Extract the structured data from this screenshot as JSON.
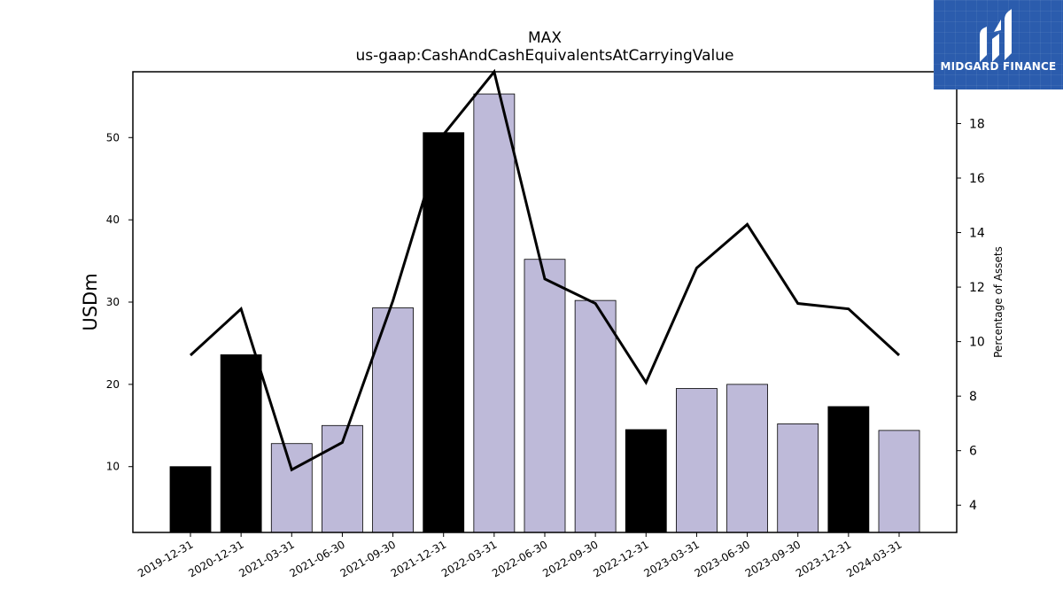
{
  "chart_data": {
    "type": "bar",
    "title": "MAX",
    "subtitle": "us-gaap:CashAndCashEquivalentsAtCarryingValue",
    "ylabel": "USDm",
    "y2label": "Percentage of Assets",
    "categories": [
      "2019-12-31",
      "2020-12-31",
      "2021-03-31",
      "2021-06-30",
      "2021-09-30",
      "2021-12-31",
      "2022-03-31",
      "2022-06-30",
      "2022-09-30",
      "2022-12-31",
      "2023-03-31",
      "2023-06-30",
      "2023-09-30",
      "2023-12-31",
      "2024-03-31"
    ],
    "series": [
      {
        "values": [
          10.0,
          23.6,
          12.8,
          15.0,
          29.3,
          50.6,
          55.3,
          35.2,
          30.2,
          14.5,
          19.5,
          20.0,
          15.2,
          17.3,
          14.4
        ],
        "annual": [
          true,
          true,
          false,
          false,
          false,
          true,
          false,
          false,
          false,
          true,
          false,
          false,
          false,
          true,
          false
        ],
        "axis": "left"
      },
      {
        "values": [
          9.5,
          11.2,
          5.3,
          6.3,
          11.5,
          17.6,
          19.9,
          12.3,
          11.4,
          8.5,
          12.7,
          14.3,
          11.4,
          11.2,
          9.5
        ],
        "axis": "right"
      }
    ],
    "ylim": [
      2,
      58
    ],
    "y2lim": [
      3.0,
      19.9
    ],
    "yticks": [
      10,
      20,
      30,
      40,
      50
    ],
    "y2ticks": [
      4,
      6,
      8,
      10,
      12,
      14,
      16,
      18
    ],
    "colors": {
      "annual_bar": "#000000",
      "quarterly_bar": "#bebad9",
      "line": "#000000"
    }
  },
  "logo": {
    "text": "MIDGARD FINANCE",
    "bg": "#2b5cad"
  }
}
